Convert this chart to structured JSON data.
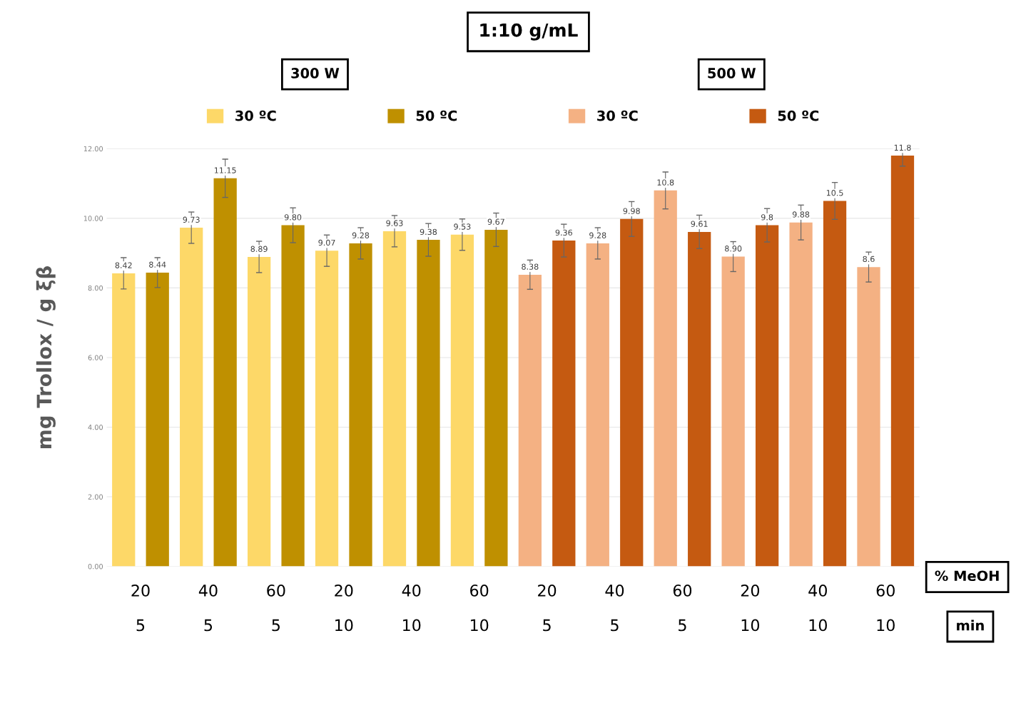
{
  "chart_data": {
    "type": "bar",
    "ylabel": "mg Trollox / g ξβ",
    "categories": [
      "20\n5",
      "40\n5",
      "60\n5",
      "20\n10",
      "40\n10",
      "60\n10",
      "20\n5",
      "40\n5",
      "60\n5",
      "20\n10",
      "40\n10",
      "60\n10"
    ],
    "series": [
      {
        "name": "30 ºC",
        "color": "#fdd868",
        "values": [
          8.42,
          9.73,
          8.89,
          9.07,
          9.63,
          9.53,
          null,
          null,
          null,
          null,
          null,
          null
        ],
        "value_labels": [
          "8.42",
          "9.73",
          "8.89",
          "9.07",
          "9.63",
          "9.53",
          null,
          null,
          null,
          null,
          null,
          null
        ],
        "errors": [
          0.45,
          0.45,
          0.45,
          0.45,
          0.45,
          0.45,
          null,
          null,
          null,
          null,
          null,
          null
        ]
      },
      {
        "name": "50 ºC",
        "color": "#bf9000",
        "values": [
          8.44,
          11.15,
          9.8,
          9.28,
          9.38,
          9.67,
          null,
          null,
          null,
          null,
          null,
          null
        ],
        "value_labels": [
          "8.44",
          "11.15",
          "9.80",
          "9.28",
          "9.38",
          "9.67",
          null,
          null,
          null,
          null,
          null,
          null
        ],
        "errors": [
          0.43,
          0.55,
          0.5,
          0.45,
          0.47,
          0.48,
          null,
          null,
          null,
          null,
          null,
          null
        ]
      },
      {
        "name": "30 ºC",
        "color": "#f4b183",
        "values": [
          null,
          null,
          null,
          null,
          null,
          null,
          8.38,
          9.28,
          10.8,
          8.9,
          9.88,
          8.6
        ],
        "value_labels": [
          null,
          null,
          null,
          null,
          null,
          null,
          "8.38",
          "9.28",
          "10.8",
          "8.90",
          "9.88",
          "8.6"
        ],
        "errors": [
          null,
          null,
          null,
          null,
          null,
          null,
          0.42,
          0.45,
          0.53,
          0.43,
          0.5,
          0.43
        ]
      },
      {
        "name": "50 ºC",
        "color": "#c55a11",
        "values": [
          null,
          null,
          null,
          null,
          null,
          null,
          9.36,
          9.98,
          9.61,
          9.8,
          10.5,
          11.8
        ],
        "value_labels": [
          null,
          null,
          null,
          null,
          null,
          null,
          "9.36",
          "9.98",
          "9.61",
          "9.8",
          "10.5",
          "11.8"
        ],
        "errors": [
          null,
          null,
          null,
          null,
          null,
          null,
          0.47,
          0.5,
          0.48,
          0.48,
          0.53,
          0.3
        ]
      }
    ],
    "ylim": [
      0,
      12
    ],
    "yticks": [
      {
        "value": 0,
        "label": "0.00"
      },
      {
        "value": 2,
        "label": "2.00"
      },
      {
        "value": 4,
        "label": "4.00"
      },
      {
        "value": 6,
        "label": "6.00"
      },
      {
        "value": 8,
        "label": "8.00"
      },
      {
        "value": 10,
        "label": "10.00"
      },
      {
        "value": 12,
        "label": "12.00"
      }
    ],
    "grid": "y",
    "legend": "top",
    "annotations": [
      "1:10 g/mL",
      "300 W",
      "500 W",
      "% MeOH",
      "min"
    ]
  }
}
